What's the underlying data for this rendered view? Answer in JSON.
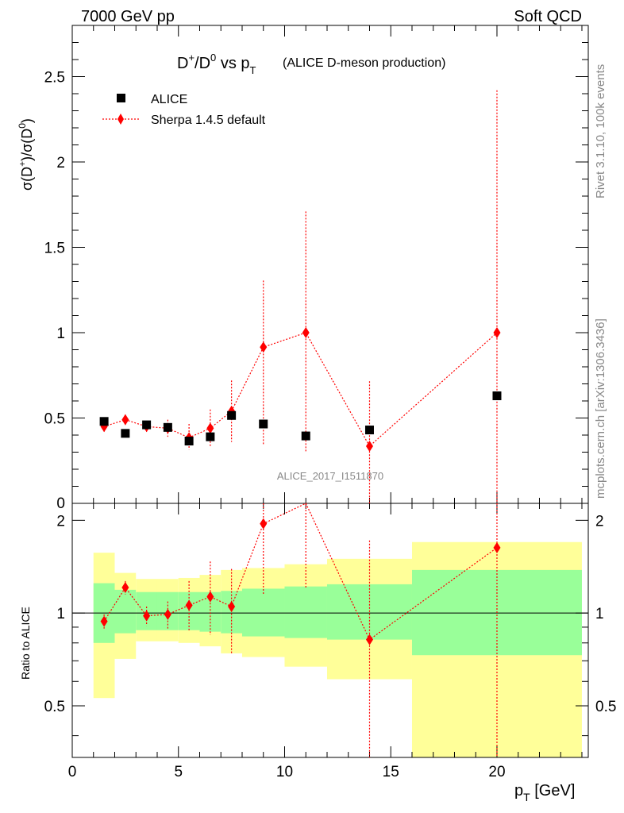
{
  "header": {
    "left": "7000 GeV pp",
    "right": "Soft QCD"
  },
  "plot_title": {
    "main_a": "D",
    "main_a_sup": "+",
    "main_b": "/D",
    "main_b_sup": "0",
    "main_c": " vs p",
    "main_c_sub": "T",
    "detail": "(ALICE D-meson production)"
  },
  "side_text": {
    "rivet": "Rivet 3.1.10,  100k events",
    "mcplots": "mcplots.cern.ch [arXiv:1306.3436]"
  },
  "watermark": "ALICE_2017_I1511870",
  "legend": {
    "data_label": "ALICE",
    "mc_label": "Sherpa 1.4.5 default"
  },
  "axes": {
    "ylabel_main": "σ(D⁺)/σ(D⁰)",
    "ylabel_ratio": "Ratio to ALICE",
    "xlabel": "p",
    "xlabel_sub": "T",
    "xlabel_unit": " [GeV]"
  },
  "colors": {
    "data": "#000000",
    "mc": "#ff0000",
    "band_inner": "#99ff99",
    "band_outer": "#ffff99"
  },
  "chart_data": {
    "type": "scatter",
    "xlim": [
      0,
      24.3
    ],
    "ylim_main": [
      0,
      2.8
    ],
    "ylim_ratio": [
      0.34,
      2.27
    ],
    "x_ticks": [
      0,
      5,
      10,
      15,
      20
    ],
    "y_ticks_main": [
      0.5,
      1,
      1.5,
      2,
      2.5
    ],
    "y_tick_labels_main": [
      "0.5",
      "1",
      "1.5",
      "2",
      "2.5"
    ],
    "y_ticks_ratio": [
      0.5,
      1,
      2
    ],
    "y_tick_labels_ratio": [
      "0.5",
      "1",
      "2"
    ],
    "y_bottom_label_main": "0",
    "bins": [
      {
        "lo": 1,
        "hi": 2
      },
      {
        "lo": 2,
        "hi": 3
      },
      {
        "lo": 3,
        "hi": 4
      },
      {
        "lo": 4,
        "hi": 5
      },
      {
        "lo": 5,
        "hi": 6
      },
      {
        "lo": 6,
        "hi": 7
      },
      {
        "lo": 7,
        "hi": 8
      },
      {
        "lo": 8,
        "hi": 10
      },
      {
        "lo": 10,
        "hi": 12
      },
      {
        "lo": 12,
        "hi": 16
      },
      {
        "lo": 16,
        "hi": 24
      }
    ],
    "data_series": {
      "name": "ALICE",
      "x": [
        1.5,
        2.5,
        3.5,
        4.5,
        5.5,
        6.5,
        7.5,
        9,
        11,
        14,
        20
      ],
      "y": [
        0.48,
        0.41,
        0.46,
        0.445,
        0.365,
        0.39,
        0.515,
        0.465,
        0.395,
        0.43,
        0.63
      ]
    },
    "mc_series": {
      "name": "Sherpa 1.4.5 default",
      "x": [
        1.5,
        2.5,
        3.5,
        4.5,
        5.5,
        6.5,
        7.5,
        9,
        11,
        14,
        20
      ],
      "y": [
        0.45,
        0.49,
        0.45,
        0.44,
        0.385,
        0.44,
        0.54,
        0.915,
        1.0,
        0.335,
        1.0
      ],
      "err_lo": [
        0.03,
        0.03,
        0.03,
        0.05,
        0.07,
        0.11,
        0.18,
        0.57,
        0.7,
        0.4,
        1.0
      ],
      "err_hi": [
        0.03,
        0.03,
        0.03,
        0.05,
        0.08,
        0.11,
        0.18,
        0.39,
        0.71,
        0.38,
        1.42
      ]
    },
    "ratio_mc": {
      "x": [
        1.5,
        2.5,
        3.5,
        4.5,
        5.5,
        6.5,
        7.5,
        9,
        11,
        14,
        20
      ],
      "y": [
        0.94,
        1.21,
        0.98,
        0.99,
        1.06,
        1.13,
        1.05,
        1.95,
        2.4,
        0.82,
        1.63
      ],
      "err_lo": [
        0.05,
        0.06,
        0.07,
        0.1,
        0.19,
        0.28,
        0.31,
        0.8,
        1.2,
        0.6,
        1.6
      ],
      "err_hi": [
        0.05,
        0.06,
        0.07,
        0.1,
        0.21,
        0.34,
        0.34,
        0.9,
        1.4,
        0.9,
        2.2
      ]
    },
    "ratio_band_inner": {
      "lo": [
        0.8,
        0.86,
        0.88,
        0.88,
        0.88,
        0.87,
        0.86,
        0.84,
        0.83,
        0.82,
        0.73
      ],
      "hi": [
        1.25,
        1.19,
        1.17,
        1.17,
        1.17,
        1.17,
        1.18,
        1.2,
        1.22,
        1.24,
        1.38
      ]
    },
    "ratio_band_outer": {
      "lo": [
        0.53,
        0.71,
        0.81,
        0.81,
        0.8,
        0.78,
        0.74,
        0.72,
        0.67,
        0.61,
        0.34
      ],
      "hi": [
        1.57,
        1.35,
        1.29,
        1.29,
        1.3,
        1.33,
        1.38,
        1.4,
        1.44,
        1.5,
        1.7
      ]
    }
  }
}
